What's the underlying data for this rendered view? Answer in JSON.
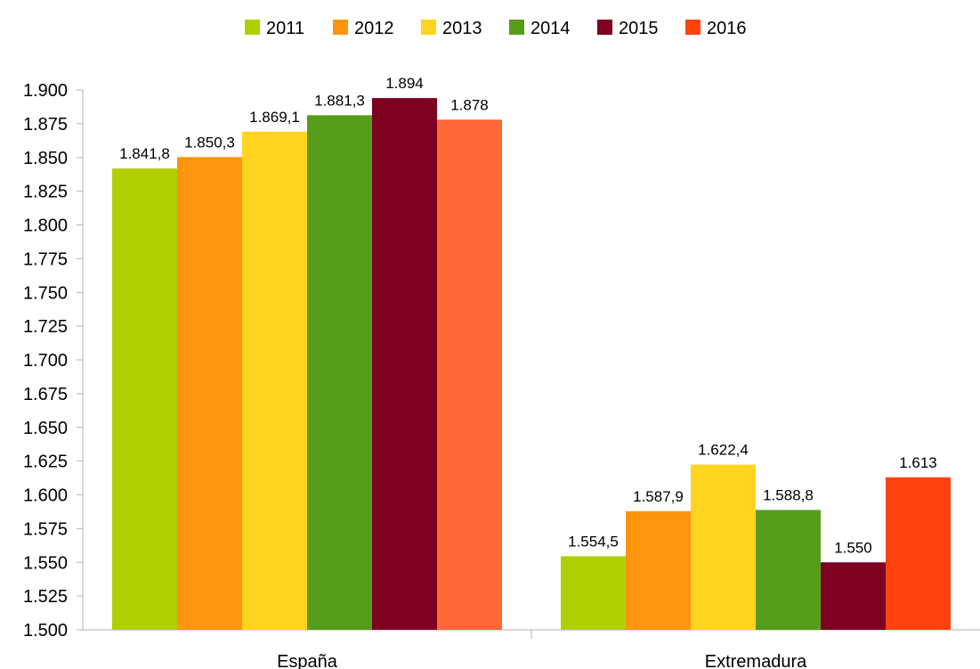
{
  "chart_data": {
    "type": "bar",
    "title": "",
    "xlabel": "",
    "ylabel": "",
    "categories": [
      "España",
      "Extremadura"
    ],
    "ylim": [
      1500,
      1900
    ],
    "ytick_step": 25,
    "ytick_labels": [
      "1.500",
      "1.525",
      "1.550",
      "1.575",
      "1.600",
      "1.625",
      "1.650",
      "1.675",
      "1.700",
      "1.725",
      "1.750",
      "1.775",
      "1.800",
      "1.825",
      "1.850",
      "1.875",
      "1.900"
    ],
    "grid": false,
    "legend_position": "top",
    "series": [
      {
        "name": "2011",
        "color": "#b0cf00",
        "values": [
          1841.8,
          1554.5
        ],
        "labels": [
          "1.841,8",
          "1.554,5"
        ]
      },
      {
        "name": "2012",
        "color": "#ff940e",
        "values": [
          1850.3,
          1587.9
        ],
        "labels": [
          "1.850,3",
          "1.587,9"
        ]
      },
      {
        "name": "2013",
        "color": "#ffd320",
        "values": [
          1869.1,
          1622.4
        ],
        "labels": [
          "1.869,1",
          "1.622,4"
        ]
      },
      {
        "name": "2014",
        "color": "#579d1c",
        "values": [
          1881.3,
          1588.8
        ],
        "labels": [
          "1.881,3",
          "1.588,8"
        ]
      },
      {
        "name": "2015",
        "color": "#7e0021",
        "values": [
          1894,
          1550
        ],
        "labels": [
          "1.894",
          "1.550"
        ]
      },
      {
        "name": "2016",
        "color": "#ff420e",
        "values": [
          1878,
          1613
        ],
        "labels": [
          "1.878",
          "1.613"
        ]
      }
    ],
    "bar_color_overrides": {
      "2016": [
        "#ff6737",
        "#ff420e"
      ]
    }
  }
}
